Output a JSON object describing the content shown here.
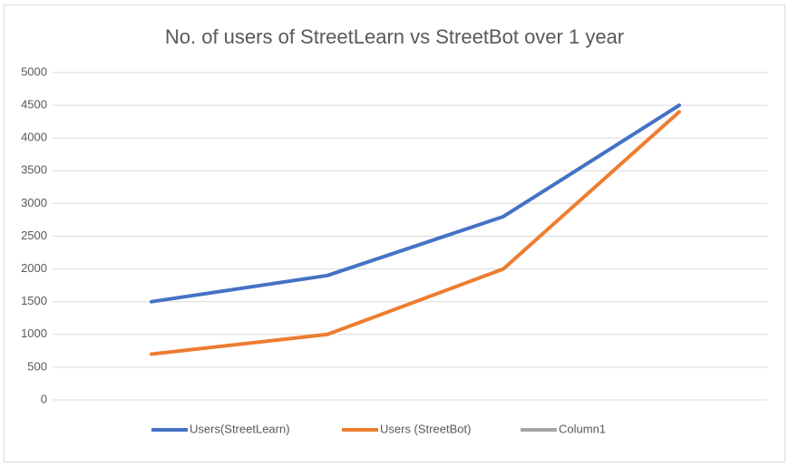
{
  "chart_data": {
    "type": "line",
    "title": "No. of users of StreetLearn vs StreetBot over 1 year",
    "categories": [
      null,
      null,
      null,
      null
    ],
    "series": [
      {
        "name": "Users(StreetLearn)",
        "color": "#4472c4",
        "values": [
          1500,
          1900,
          2800,
          4500
        ]
      },
      {
        "name": "Users (StreetBot)",
        "color": "#ed7d31",
        "values": [
          700,
          1000,
          2000,
          4400
        ]
      },
      {
        "name": "Column1",
        "color": "#a5a5a5",
        "values": [
          null,
          null,
          null,
          null
        ]
      }
    ],
    "ylim": [
      0,
      5000
    ],
    "yticks": [
      0,
      500,
      1000,
      1500,
      2000,
      2500,
      3000,
      3500,
      4000,
      4500,
      5000
    ],
    "grid": true,
    "legend": "bottom"
  }
}
